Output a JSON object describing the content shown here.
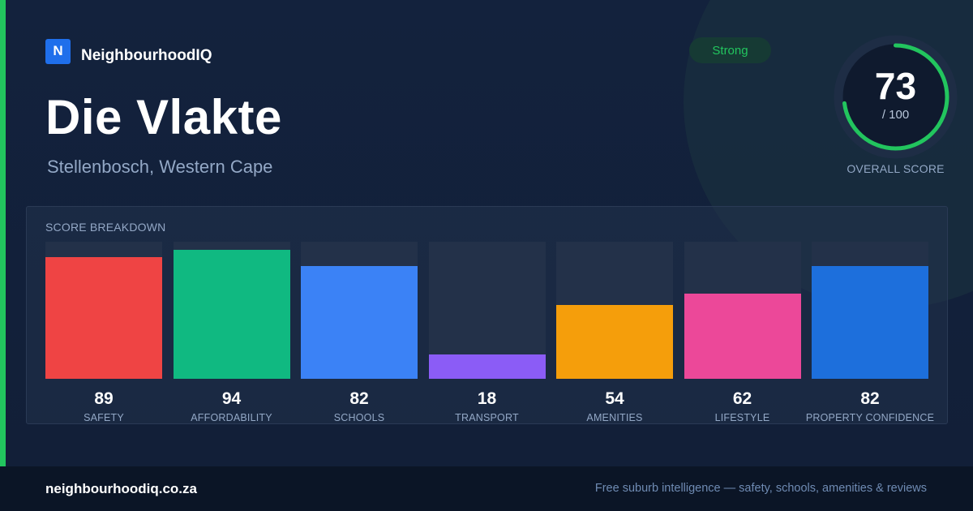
{
  "brand": {
    "logo_letter": "N",
    "name": "NeighbourhoodIQ"
  },
  "suburb": {
    "name": "Die Vlakte",
    "location": "Stellenbosch, Western Cape"
  },
  "rating": {
    "label": "Strong",
    "color": "#22c55e"
  },
  "overall": {
    "score": "73",
    "out_of": "/ 100",
    "label": "OVERALL SCORE",
    "fraction": 0.73
  },
  "breakdown": {
    "title": "SCORE BREAKDOWN",
    "items": [
      {
        "value": 89,
        "label": "SAFETY",
        "color": "#ef4444"
      },
      {
        "value": 94,
        "label": "AFFORDABILITY",
        "color": "#10b981"
      },
      {
        "value": 82,
        "label": "SCHOOLS",
        "color": "#3b82f6"
      },
      {
        "value": 18,
        "label": "TRANSPORT",
        "color": "#8b5cf6"
      },
      {
        "value": 54,
        "label": "AMENITIES",
        "color": "#f59e0b"
      },
      {
        "value": 62,
        "label": "LIFESTYLE",
        "color": "#ec4899"
      },
      {
        "value": 82,
        "label": "PROPERTY CONFIDENCE",
        "color": "#1d6fdc"
      }
    ]
  },
  "footer": {
    "domain": "neighbourhoodiq.co.za",
    "tagline": "Free suburb intelligence — safety, schools, amenities & reviews"
  }
}
